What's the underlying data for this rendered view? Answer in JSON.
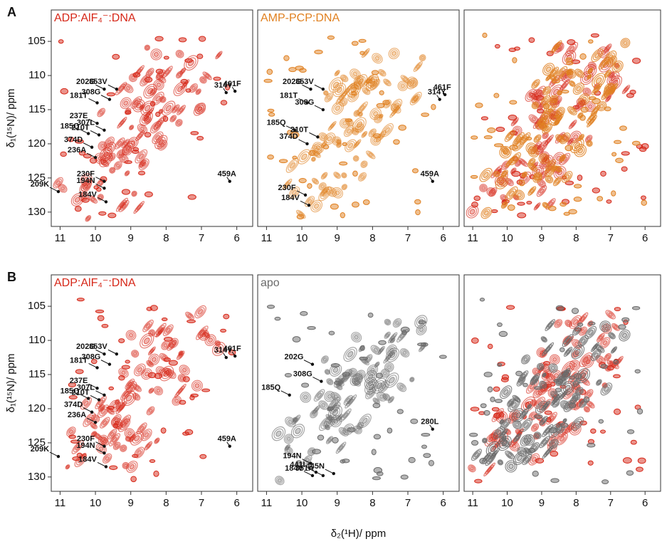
{
  "chart_data": [
    {
      "type": "nmr",
      "panel_label": "A",
      "title": "ADP:AlF₄⁻:DNA",
      "colors": [
        "#d62718"
      ],
      "ylabel": "δ₁(¹⁵N)/ ppm",
      "xlim": [
        11.25,
        5.55
      ],
      "ylim": [
        100.4,
        132.1
      ],
      "xticks": [
        11,
        10,
        9,
        8,
        7,
        6
      ],
      "yticks": [
        105,
        110,
        115,
        120,
        125,
        130
      ],
      "annotations": [
        {
          "label": "181T",
          "x": 9.95,
          "y": 114
        },
        {
          "label": "202G",
          "x": 9.75,
          "y": 112
        },
        {
          "label": "308G",
          "x": 9.6,
          "y": 113.5
        },
        {
          "label": "353V",
          "x": 9.4,
          "y": 112
        },
        {
          "label": "237E",
          "x": 9.95,
          "y": 117
        },
        {
          "label": "185Q",
          "x": 10.2,
          "y": 118.5
        },
        {
          "label": "210T",
          "x": 9.9,
          "y": 118.7
        },
        {
          "label": "307L",
          "x": 9.75,
          "y": 118
        },
        {
          "label": "374D",
          "x": 10.1,
          "y": 120.5
        },
        {
          "label": "236A",
          "x": 10.0,
          "y": 122
        },
        {
          "label": "230F",
          "x": 9.75,
          "y": 125.5
        },
        {
          "label": "194N",
          "x": 9.75,
          "y": 126.5
        },
        {
          "label": "209K",
          "x": 11.05,
          "y": 127
        },
        {
          "label": "184V",
          "x": 9.7,
          "y": 128.5
        },
        {
          "label": "461F",
          "x": 6.05,
          "y": 112.3
        },
        {
          "label": "314Y",
          "x": 6.3,
          "y": 112.5
        },
        {
          "label": "459A",
          "x": 6.2,
          "y": 125.5
        }
      ]
    },
    {
      "type": "nmr",
      "title": "AMP-PCP:DNA",
      "colors": [
        "#e08020"
      ],
      "xlim": [
        11.25,
        5.55
      ],
      "ylim": [
        100.4,
        132.1
      ],
      "xticks": [
        11,
        10,
        9,
        8,
        7,
        6
      ],
      "annotations": [
        {
          "label": "202G",
          "x": 9.75,
          "y": 112
        },
        {
          "label": "353V",
          "x": 9.4,
          "y": 112
        },
        {
          "label": "181T",
          "x": 9.85,
          "y": 114
        },
        {
          "label": "308G",
          "x": 9.4,
          "y": 115
        },
        {
          "label": "185Q",
          "x": 10.2,
          "y": 118
        },
        {
          "label": "210T",
          "x": 9.55,
          "y": 119
        },
        {
          "label": "374D",
          "x": 9.85,
          "y": 120
        },
        {
          "label": "230F",
          "x": 9.9,
          "y": 127.5
        },
        {
          "label": "184V",
          "x": 9.8,
          "y": 129
        },
        {
          "label": "461F",
          "x": 5.95,
          "y": 112.8
        },
        {
          "label": "314Y",
          "x": 6.1,
          "y": 113.5
        },
        {
          "label": "459A",
          "x": 6.3,
          "y": 125.5
        }
      ]
    },
    {
      "type": "nmr",
      "colors": [
        "#d62718",
        "#e08020"
      ],
      "xlim": [
        11.25,
        5.55
      ],
      "ylim": [
        100.4,
        132.1
      ],
      "xticks": [
        11,
        10,
        9,
        8,
        7,
        6
      ]
    },
    {
      "type": "nmr",
      "panel_label": "B",
      "title": "ADP:AlF₄⁻:DNA",
      "colors": [
        "#d62718"
      ],
      "ylabel": "δ₁(¹⁵N)/ ppm",
      "xlim": [
        11.25,
        5.55
      ],
      "ylim": [
        100.4,
        132.1
      ],
      "xticks": [
        11,
        10,
        9,
        8,
        7,
        6
      ],
      "yticks": [
        105,
        110,
        115,
        120,
        125,
        130
      ],
      "annotations": [
        {
          "label": "181T",
          "x": 9.95,
          "y": 114
        },
        {
          "label": "202G",
          "x": 9.75,
          "y": 112
        },
        {
          "label": "308G",
          "x": 9.6,
          "y": 113.5
        },
        {
          "label": "353V",
          "x": 9.4,
          "y": 112
        },
        {
          "label": "237E",
          "x": 9.95,
          "y": 117
        },
        {
          "label": "185Q",
          "x": 10.2,
          "y": 118.5
        },
        {
          "label": "210T",
          "x": 9.9,
          "y": 118.7
        },
        {
          "label": "307L",
          "x": 9.75,
          "y": 118
        },
        {
          "label": "374D",
          "x": 10.1,
          "y": 120.5
        },
        {
          "label": "236A",
          "x": 10.0,
          "y": 122
        },
        {
          "label": "230F",
          "x": 9.75,
          "y": 125.5
        },
        {
          "label": "194N",
          "x": 9.75,
          "y": 126.5
        },
        {
          "label": "209K",
          "x": 11.05,
          "y": 127
        },
        {
          "label": "184V",
          "x": 9.7,
          "y": 128.5
        },
        {
          "label": "461F",
          "x": 6.05,
          "y": 112.3
        },
        {
          "label": "314Y",
          "x": 6.3,
          "y": 112.5
        },
        {
          "label": "459A",
          "x": 6.2,
          "y": 125.5
        }
      ]
    },
    {
      "type": "nmr",
      "title": "apo",
      "colors": [
        "#6a6a6a"
      ],
      "xlabel": "δ₂(¹H)/ ppm",
      "xlim": [
        11.25,
        5.55
      ],
      "ylim": [
        100.4,
        132.1
      ],
      "xticks": [
        11,
        10,
        9,
        8,
        7,
        6
      ],
      "annotations": [
        {
          "label": "202G",
          "x": 9.7,
          "y": 113.5
        },
        {
          "label": "308G",
          "x": 9.45,
          "y": 116
        },
        {
          "label": "185Q",
          "x": 10.35,
          "y": 118
        },
        {
          "label": "280L",
          "x": 6.3,
          "y": 123
        },
        {
          "label": "194N",
          "x": 9.75,
          "y": 128
        },
        {
          "label": "441I",
          "x": 9.6,
          "y": 129.3
        },
        {
          "label": "445N",
          "x": 9.1,
          "y": 129.5
        },
        {
          "label": "184V",
          "x": 9.7,
          "y": 129.8
        },
        {
          "label": "351A",
          "x": 9.4,
          "y": 129.8
        }
      ]
    },
    {
      "type": "nmr",
      "colors": [
        "#d62718",
        "#6a6a6a"
      ],
      "xlim": [
        11.25,
        5.55
      ],
      "ylim": [
        100.4,
        132.1
      ],
      "xticks": [
        11,
        10,
        9,
        8,
        7,
        6
      ]
    }
  ]
}
